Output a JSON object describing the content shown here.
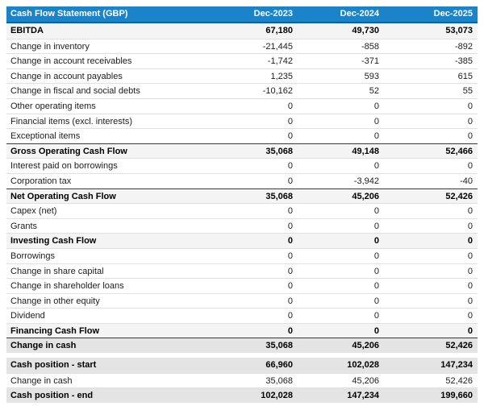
{
  "title": "Cash Flow Statement (GBP)",
  "columns": [
    "Dec-2023",
    "Dec-2024",
    "Dec-2025"
  ],
  "colors": {
    "header_bg": "#1b84c8",
    "header_border": "#135f9b",
    "subtotal_bg": "#f4f4f4",
    "total_bg": "#e4e4e4",
    "row_border": "#e0e0e0",
    "dark_border": "#3a3a3a",
    "text": "#1c1c1c"
  },
  "sections": [
    {
      "rows": [
        {
          "label": "EBITDA",
          "values": [
            "67,180",
            "49,730",
            "53,073"
          ],
          "type": "subtotal",
          "top_border": "none"
        },
        {
          "label": "Change in inventory",
          "values": [
            "-21,445",
            "-858",
            "-892"
          ],
          "type": "normal",
          "top_border": "light"
        },
        {
          "label": "Change in account receivables",
          "values": [
            "-1,742",
            "-371",
            "-385"
          ],
          "type": "normal",
          "top_border": "light"
        },
        {
          "label": "Change in account payables",
          "values": [
            "1,235",
            "593",
            "615"
          ],
          "type": "normal",
          "top_border": "light"
        },
        {
          "label": "Change in fiscal and social debts",
          "values": [
            "-10,162",
            "52",
            "55"
          ],
          "type": "normal",
          "top_border": "light"
        },
        {
          "label": "Other operating items",
          "values": [
            "0",
            "0",
            "0"
          ],
          "type": "normal",
          "top_border": "light"
        },
        {
          "label": "Financial items (excl. interests)",
          "values": [
            "0",
            "0",
            "0"
          ],
          "type": "normal",
          "top_border": "light"
        },
        {
          "label": "Exceptional items",
          "values": [
            "0",
            "0",
            "0"
          ],
          "type": "normal",
          "top_border": "light"
        },
        {
          "label": "Gross Operating Cash Flow",
          "values": [
            "35,068",
            "49,148",
            "52,466"
          ],
          "type": "subtotal",
          "top_border": "dark"
        },
        {
          "label": "Interest paid on borrowings",
          "values": [
            "0",
            "0",
            "0"
          ],
          "type": "normal",
          "top_border": "light"
        },
        {
          "label": "Corporation tax",
          "values": [
            "0",
            "-3,942",
            "-40"
          ],
          "type": "normal",
          "top_border": "light"
        },
        {
          "label": "Net Operating Cash Flow",
          "values": [
            "35,068",
            "45,206",
            "52,426"
          ],
          "type": "subtotal",
          "top_border": "dark"
        },
        {
          "label": "Capex (net)",
          "values": [
            "0",
            "0",
            "0"
          ],
          "type": "normal",
          "top_border": "light"
        },
        {
          "label": "Grants",
          "values": [
            "0",
            "0",
            "0"
          ],
          "type": "normal",
          "top_border": "light"
        },
        {
          "label": "Investing Cash Flow",
          "values": [
            "0",
            "0",
            "0"
          ],
          "type": "subtotal",
          "top_border": "light"
        },
        {
          "label": "Borrowings",
          "values": [
            "0",
            "0",
            "0"
          ],
          "type": "normal",
          "top_border": "light"
        },
        {
          "label": "Change in share capital",
          "values": [
            "0",
            "0",
            "0"
          ],
          "type": "normal",
          "top_border": "light"
        },
        {
          "label": "Change in shareholder loans",
          "values": [
            "0",
            "0",
            "0"
          ],
          "type": "normal",
          "top_border": "light"
        },
        {
          "label": "Change in other equity",
          "values": [
            "0",
            "0",
            "0"
          ],
          "type": "normal",
          "top_border": "light"
        },
        {
          "label": "Dividend",
          "values": [
            "0",
            "0",
            "0"
          ],
          "type": "normal",
          "top_border": "light"
        },
        {
          "label": "Financing Cash Flow",
          "values": [
            "0",
            "0",
            "0"
          ],
          "type": "subtotal",
          "top_border": "light"
        },
        {
          "label": "Change in cash",
          "values": [
            "35,068",
            "45,206",
            "52,426"
          ],
          "type": "total",
          "top_border": "dark"
        }
      ]
    },
    {
      "rows": [
        {
          "label": "Cash position - start",
          "values": [
            "66,960",
            "102,028",
            "147,234"
          ],
          "type": "total",
          "top_border": "none"
        },
        {
          "label": "Change in cash",
          "values": [
            "35,068",
            "45,206",
            "52,426"
          ],
          "type": "normal",
          "top_border": "light"
        },
        {
          "label": "Cash position - end",
          "values": [
            "102,028",
            "147,234",
            "199,660"
          ],
          "type": "total",
          "top_border": "light"
        }
      ]
    }
  ]
}
